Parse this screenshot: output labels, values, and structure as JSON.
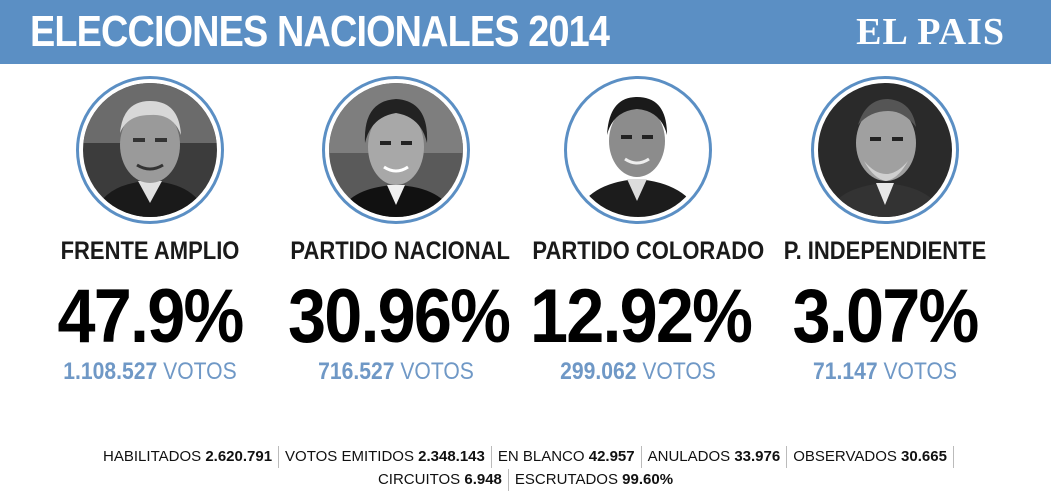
{
  "header": {
    "title": "ELECCIONES NACIONALES 2014",
    "logo": "EL PAIS",
    "bg_color": "#5b8fc4"
  },
  "candidates": [
    {
      "party": "FRENTE AMPLIO",
      "percent": "47.9%",
      "votes": "1.108.527",
      "votes_label": "VOTOS"
    },
    {
      "party": "PARTIDO NACIONAL",
      "percent": "30.96%",
      "votes": "716.527",
      "votes_label": "VOTOS"
    },
    {
      "party": "PARTIDO COLORADO",
      "percent": "12.92%",
      "votes": "299.062",
      "votes_label": "VOTOS"
    },
    {
      "party": "P. INDEPENDIENTE",
      "percent": "3.07%",
      "votes": "71.147",
      "votes_label": "VOTOS"
    }
  ],
  "stats": {
    "row1": [
      {
        "label": "HABILITADOS",
        "value": "2.620.791"
      },
      {
        "label": "VOTOS EMITIDOS",
        "value": "2.348.143"
      },
      {
        "label": "EN BLANCO",
        "value": "42.957"
      },
      {
        "label": "ANULADOS",
        "value": "33.976"
      },
      {
        "label": "OBSERVADOS",
        "value": "30.665"
      }
    ],
    "row2": [
      {
        "label": "CIRCUITOS",
        "value": "6.948"
      },
      {
        "label": "ESCRUTADOS",
        "value": "99.60%"
      }
    ]
  }
}
